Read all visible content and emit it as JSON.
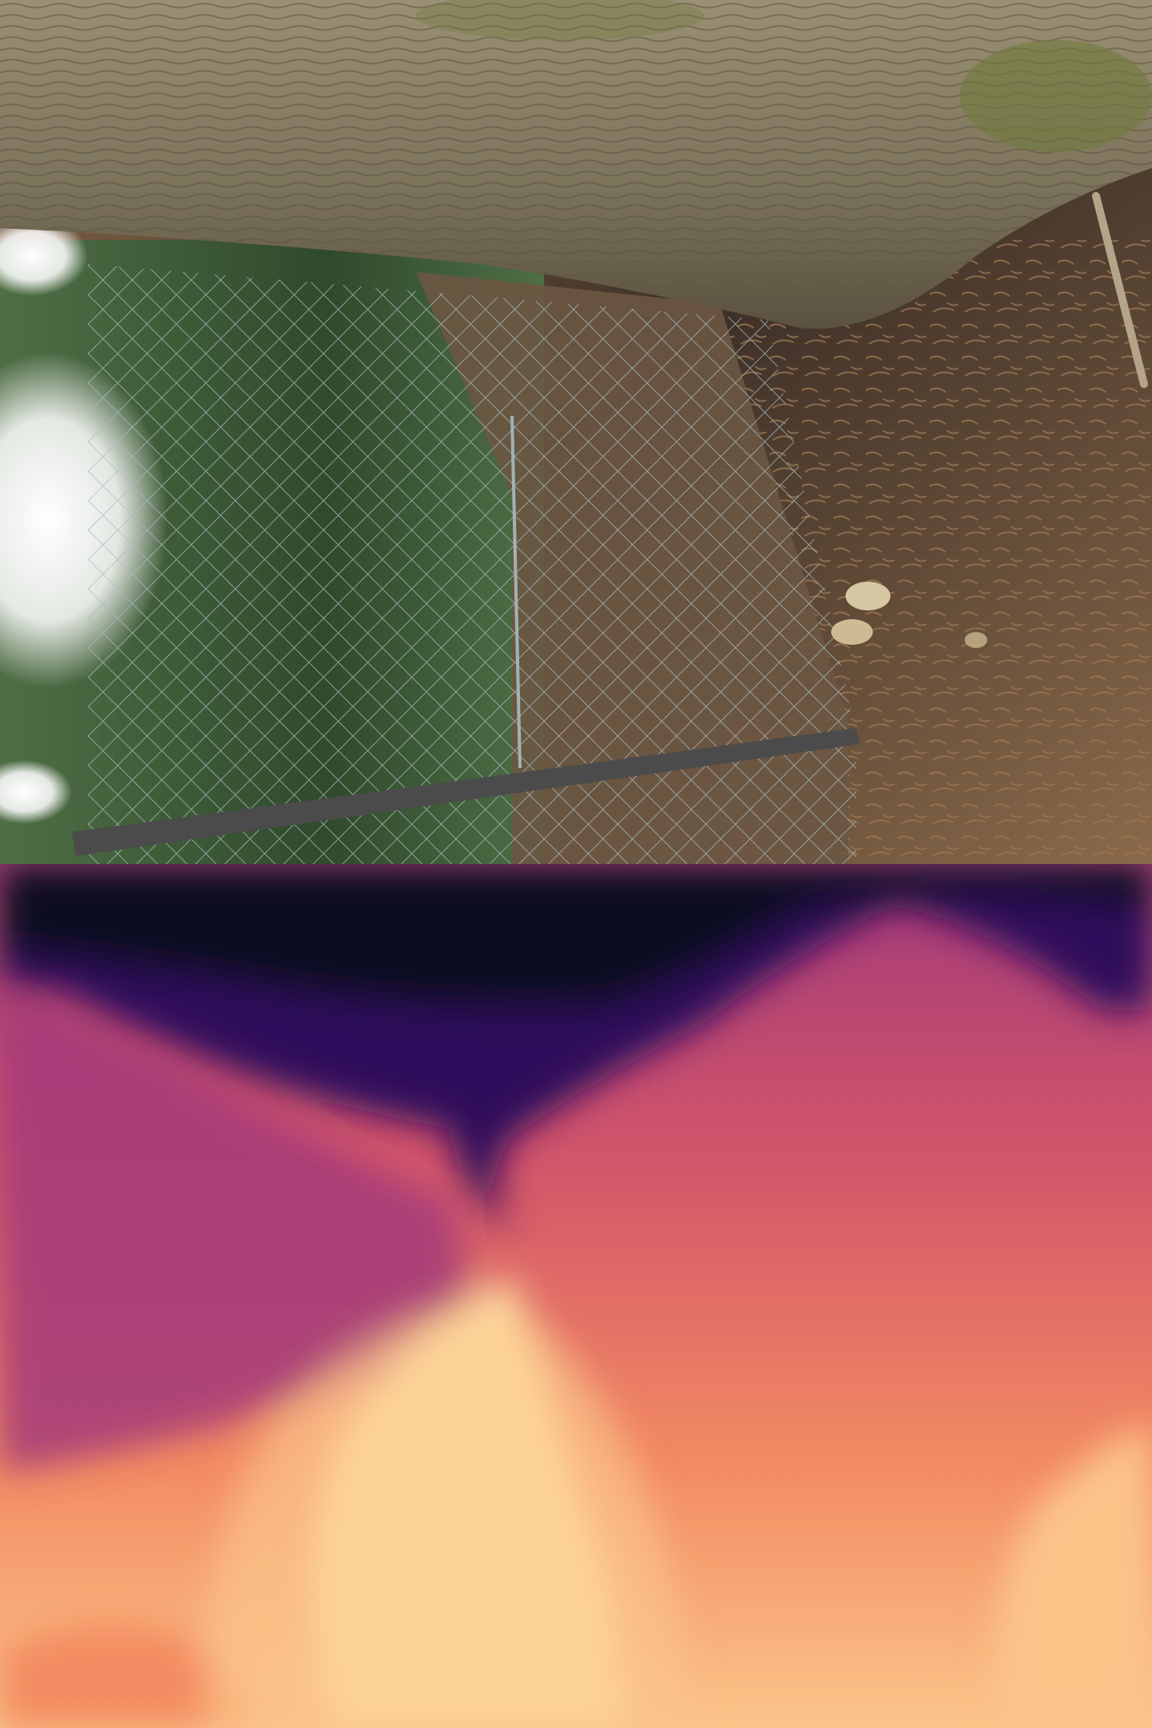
{
  "photo": {
    "subject": "rotated-photo-tree-trunk-chainlink-fence-forest-floor",
    "colors": {
      "bark_light": "#9a9075",
      "bark_mid": "#7d745c",
      "bark_dark": "#5a513f",
      "moss": "#6f7a3a",
      "foliage_dark": "#2f4a2c",
      "foliage_mid": "#4f6e45",
      "sky_glare": "#ffffff",
      "fence_wire": "#9fb3b6",
      "fence_post": "#4b4b4b",
      "ground_soil": "#3f3128",
      "ground_needles": "#8a6a4a",
      "leaf_litter": "#b39a78"
    }
  },
  "depth_map": {
    "colormap": "magma",
    "colors": {
      "far_black": "#0b0720",
      "deep_purple": "#2e0f5c",
      "purple": "#5a1a7a",
      "magenta": "#a23a7a",
      "rose": "#d4566a",
      "orange": "#f38c62",
      "peach": "#fbc58a",
      "near_yellow": "#fdf3b4"
    }
  }
}
